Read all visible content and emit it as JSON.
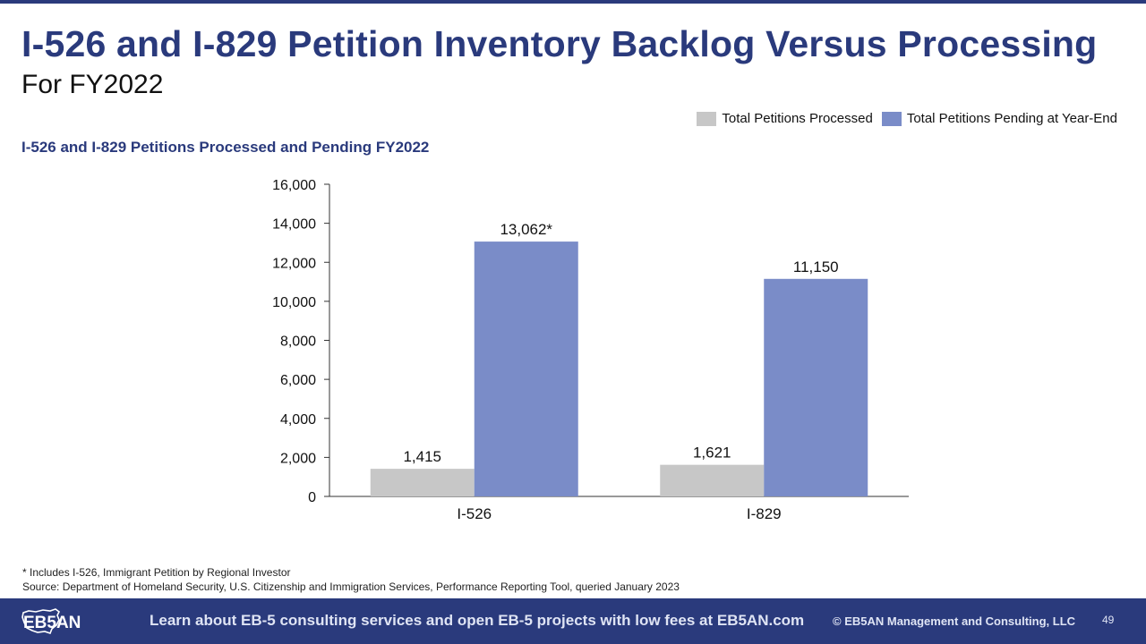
{
  "header": {
    "title": "I-526 and I-829 Petition Inventory Backlog Versus Processing",
    "subtitle": "For FY2022"
  },
  "chart_data": {
    "type": "bar",
    "title": "I-526 and I-829 Petitions Processed and Pending FY2022",
    "categories": [
      "I-526",
      "I-829"
    ],
    "series": [
      {
        "name": "Total Petitions Processed",
        "values": [
          1415,
          1621
        ],
        "labels": [
          "1,415",
          "1,621"
        ],
        "color": "#c7c7c7"
      },
      {
        "name": "Total Petitions Pending at Year-End",
        "values": [
          13062,
          11150
        ],
        "labels": [
          "13,062*",
          "11,150"
        ],
        "color": "#7a8cc8"
      }
    ],
    "ylim": [
      0,
      16000
    ],
    "yticks": [
      "0",
      "2,000",
      "4,000",
      "6,000",
      "8,000",
      "10,000",
      "12,000",
      "14,000",
      "16,000"
    ],
    "xlabel": "",
    "ylabel": "",
    "grid": false,
    "legend_position": "top-right"
  },
  "footnotes": {
    "note": "* Includes I-526, Immigrant Petition by Regional Investor",
    "source": "Source: Department of Homeland Security, U.S. Citizenship and Immigration Services, Performance Reporting Tool, queried January 2023"
  },
  "footer": {
    "logo_text": "EB5AN",
    "cta": "Learn about EB-5 consulting services and open EB-5 projects with low fees at EB5AN.com",
    "copyright": "© EB5AN Management and Consulting, LLC",
    "page_number": "49",
    "background_color": "#2a3a7c"
  }
}
